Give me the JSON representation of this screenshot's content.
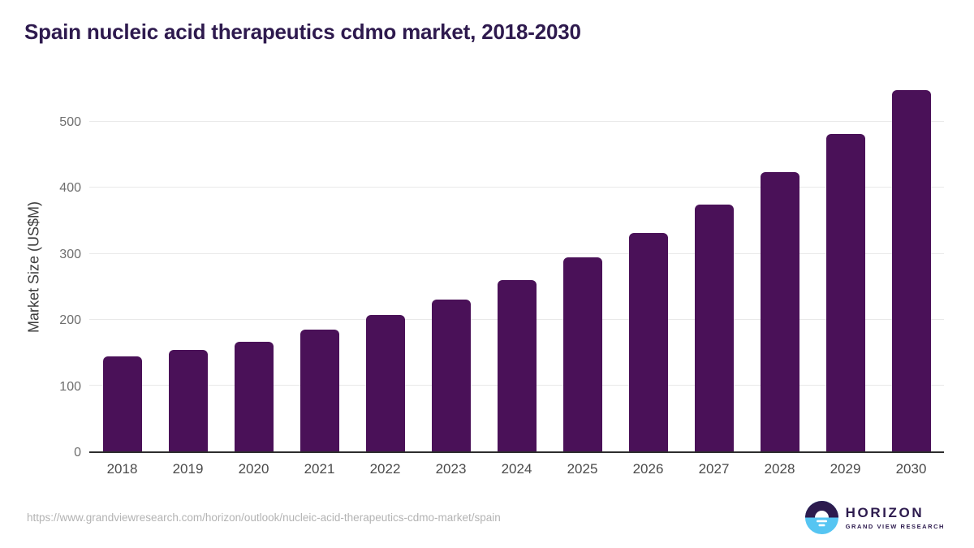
{
  "colors": {
    "bar": "#4a1158",
    "title": "#2e1a4e",
    "grid": "#e9e9e9",
    "axis": "#2d2d2d",
    "ytick": "#6e6e6e",
    "xtick": "#4a4a4a",
    "ylabel": "#3d3d3d",
    "url": "#b3b3b3",
    "logo_purple": "#2d1b4e",
    "logo_blue": "#56c5f2"
  },
  "chart_data": {
    "type": "bar",
    "title": "Spain nucleic acid therapeutics cdmo market, 2018-2030",
    "categories": [
      "2018",
      "2019",
      "2020",
      "2021",
      "2022",
      "2023",
      "2024",
      "2025",
      "2026",
      "2027",
      "2028",
      "2029",
      "2030"
    ],
    "values": [
      144,
      154,
      167,
      185,
      207,
      231,
      260,
      295,
      331,
      375,
      424,
      482,
      549
    ],
    "xlabel": "",
    "ylabel": "Market Size (US$M)",
    "ylim": [
      0,
      562
    ],
    "yticks": [
      0,
      100,
      200,
      300,
      400,
      500
    ],
    "grid": true,
    "legend_position": "none",
    "bar_color": "#4a1158"
  },
  "footer": {
    "source_url": "https://www.grandviewresearch.com/horizon/outlook/nucleic-acid-therapeutics-cdmo-market/spain",
    "logo": {
      "name": "HORIZON",
      "subtitle": "GRAND VIEW RESEARCH"
    }
  }
}
